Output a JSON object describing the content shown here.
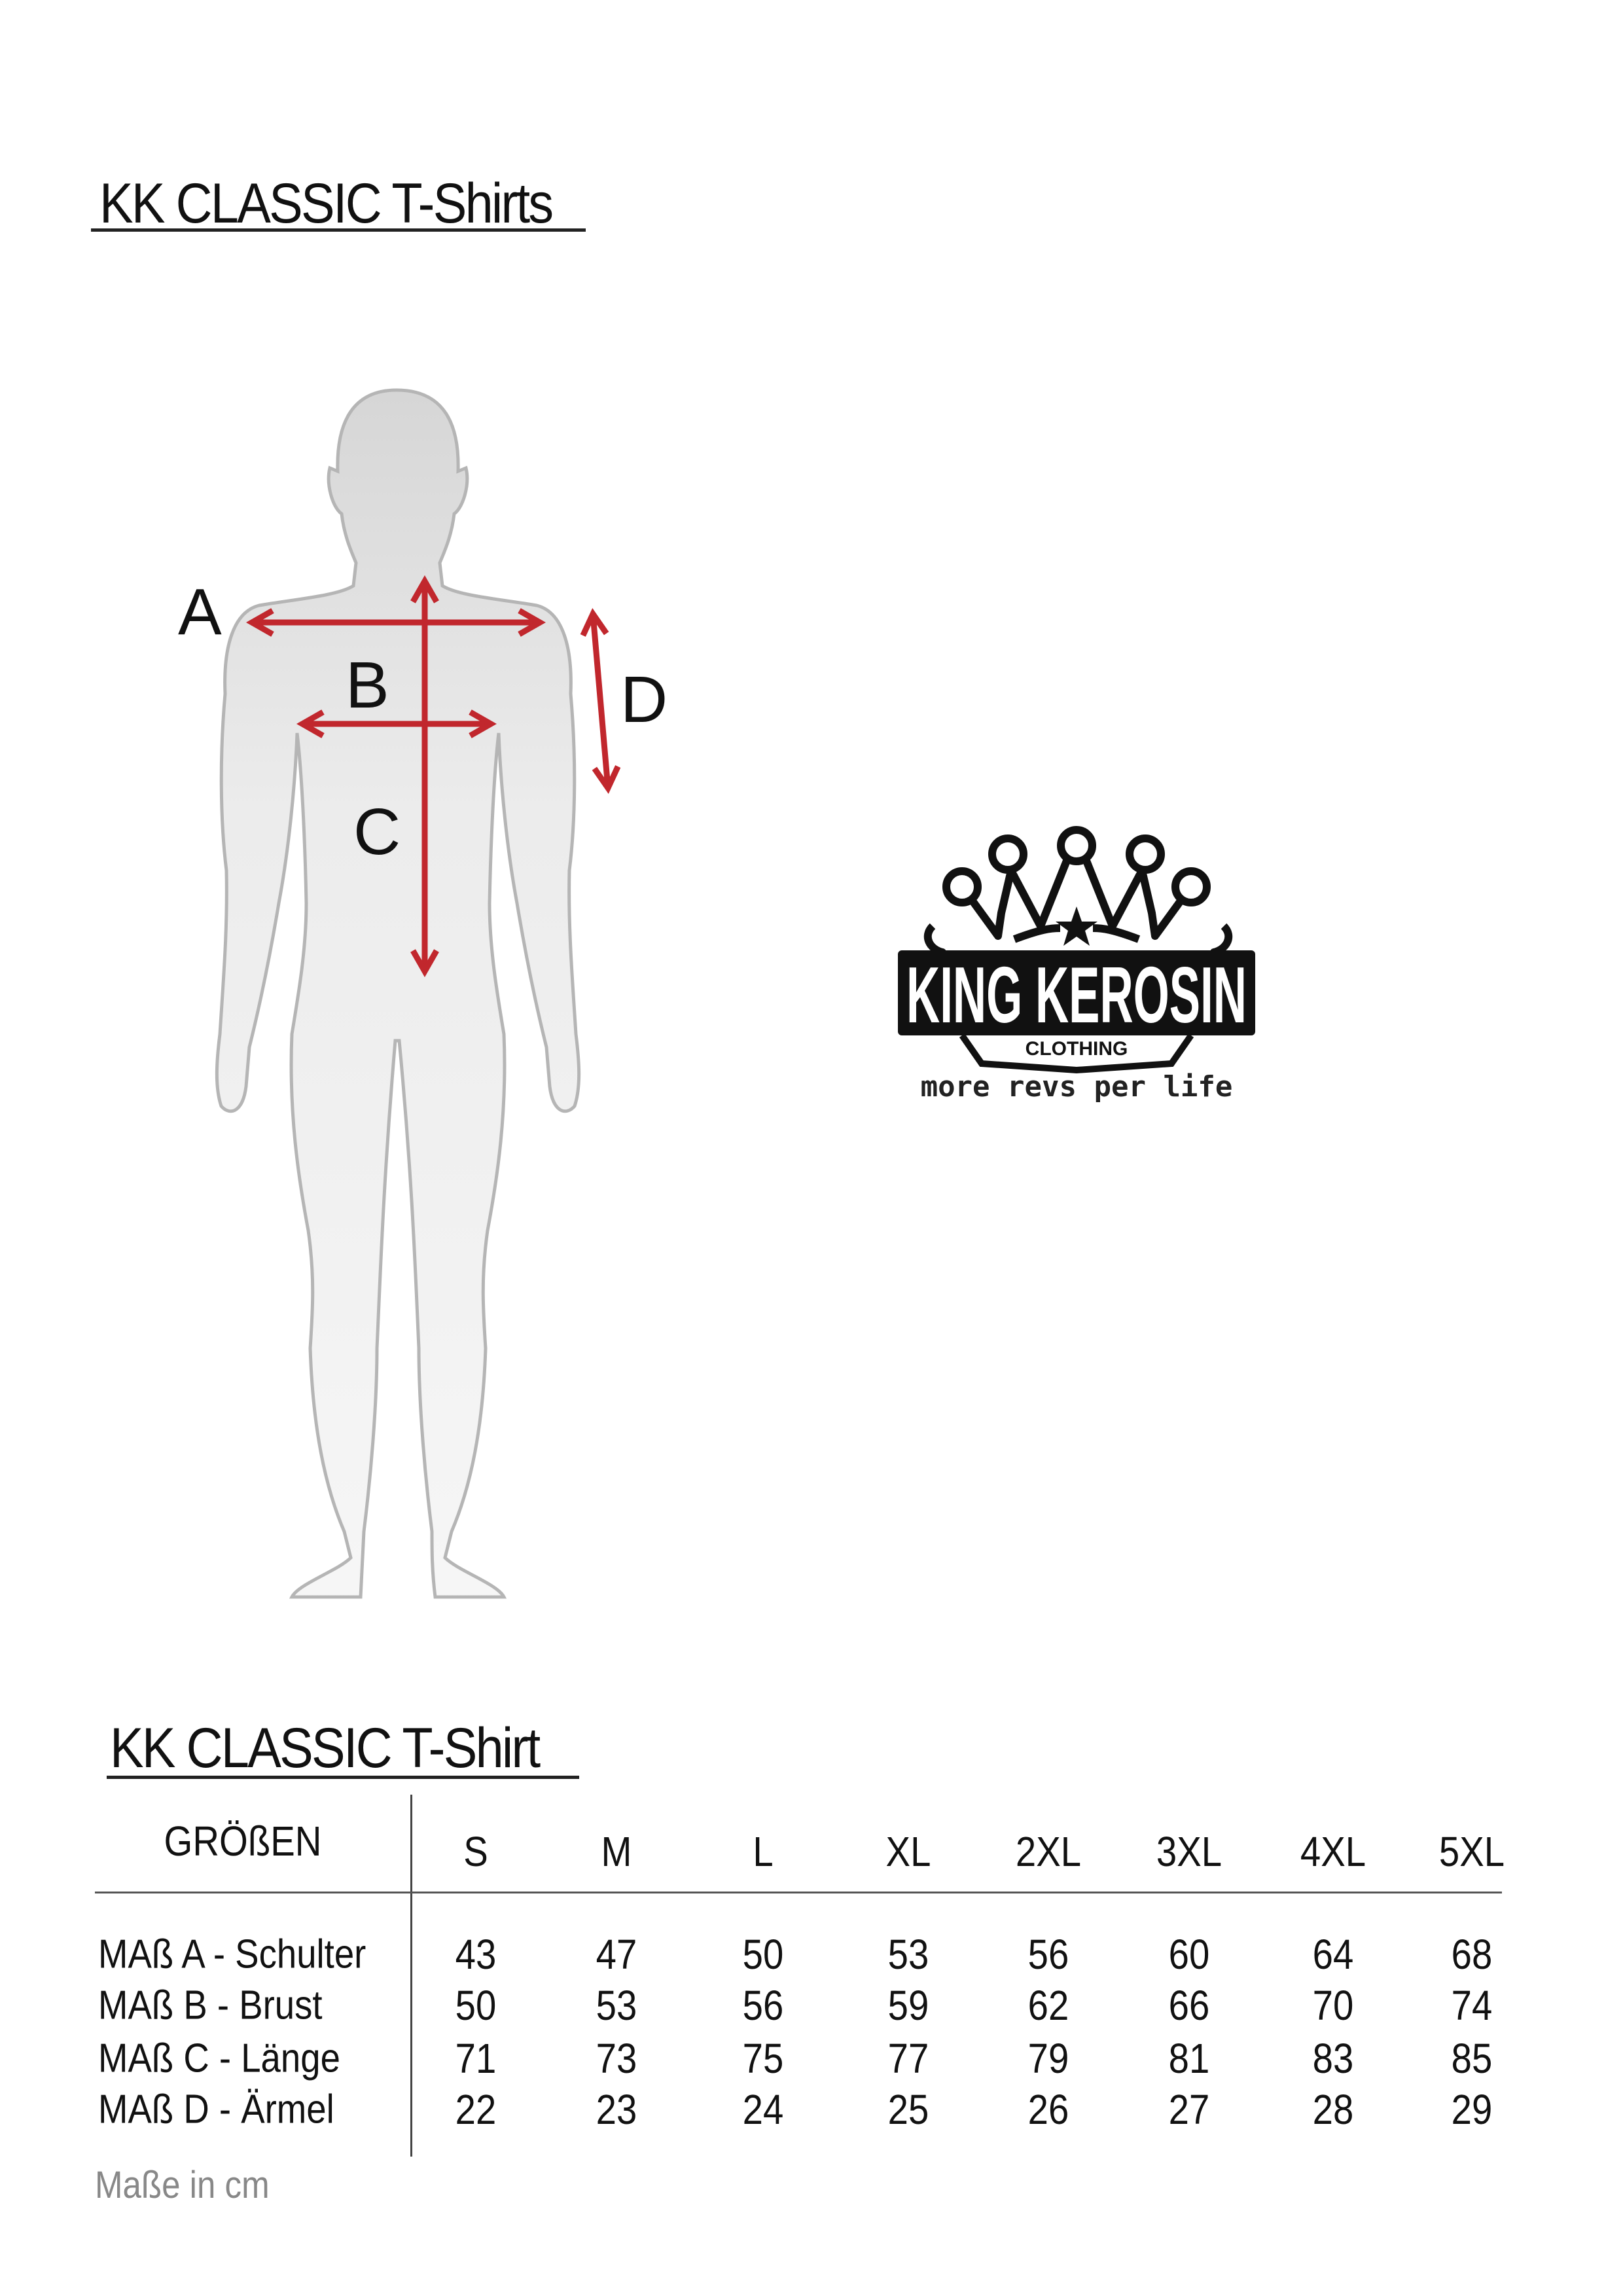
{
  "page_title": "KK CLASSIC  T-Shirts",
  "diagram": {
    "labels": {
      "a": "A",
      "b": "B",
      "c": "C",
      "d": "D"
    },
    "arrow_color": "#c1272d"
  },
  "logo": {
    "brand": "KING KEROSIN",
    "sub": "CLOTHING",
    "tagline": "more revs per life"
  },
  "table": {
    "title": "KK CLASSIC  T-Shirt",
    "header_label": "GRÖßEN",
    "sizes": [
      "S",
      "M",
      "L",
      "XL",
      "2XL",
      "3XL",
      "4XL",
      "5XL"
    ],
    "rows": [
      {
        "label": "MAß A - Schulter",
        "values": [
          "43",
          "47",
          "50",
          "53",
          "56",
          "60",
          "64",
          "68"
        ]
      },
      {
        "label": "MAß B - Brust",
        "values": [
          "50",
          "53",
          "56",
          "59",
          "62",
          "66",
          "70",
          "74"
        ]
      },
      {
        "label": "MAß C - Länge",
        "values": [
          "71",
          "73",
          "75",
          "77",
          "79",
          "81",
          "83",
          "85"
        ]
      },
      {
        "label": "MAß D - Ärmel",
        "values": [
          "22",
          "23",
          "24",
          "25",
          "26",
          "27",
          "28",
          "29"
        ]
      }
    ],
    "note": "Maße in cm"
  }
}
